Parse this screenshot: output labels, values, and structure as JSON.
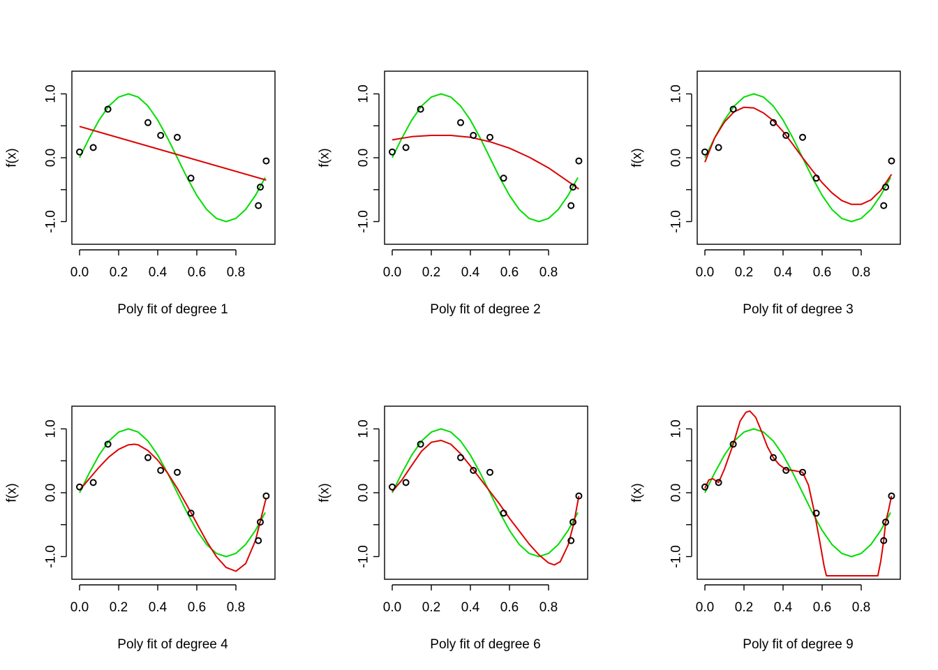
{
  "colors": {
    "truth": "#00dd00",
    "fit": "#dd0000",
    "points": "#000000",
    "background": "#ffffff"
  },
  "chart_data": [
    {
      "type": "line",
      "xlabel": "Poly fit of degree 1",
      "ylabel": "f(x)",
      "xlim": [
        0,
        0.95
      ],
      "ylim": [
        -1.3,
        1.3
      ],
      "xticks": [
        "0.0",
        "0.2",
        "0.4",
        "0.6",
        "0.8"
      ],
      "yticks": [
        "-1.0",
        "0.0",
        "1.0"
      ],
      "points": {
        "x": [
          0.0,
          0.07,
          0.145,
          0.35,
          0.415,
          0.5,
          0.57,
          0.915,
          0.925,
          0.955
        ],
        "y": [
          0.09,
          0.16,
          0.76,
          0.55,
          0.35,
          0.32,
          -0.32,
          -0.75,
          -0.46,
          -0.05
        ]
      },
      "true_curve": {
        "x": [
          0.0,
          0.05,
          0.1,
          0.15,
          0.2,
          0.25,
          0.3,
          0.35,
          0.4,
          0.45,
          0.5,
          0.55,
          0.6,
          0.65,
          0.7,
          0.75,
          0.8,
          0.85,
          0.9,
          0.95
        ],
        "y": [
          0.0,
          0.31,
          0.59,
          0.81,
          0.95,
          1.0,
          0.95,
          0.81,
          0.59,
          0.31,
          0.0,
          -0.31,
          -0.59,
          -0.81,
          -0.95,
          -1.0,
          -0.95,
          -0.81,
          -0.59,
          -0.31
        ]
      },
      "fit_curve": {
        "x": [
          0.0,
          0.955
        ],
        "y": [
          0.49,
          -0.35
        ]
      }
    },
    {
      "type": "line",
      "xlabel": "Poly fit of degree 2",
      "ylabel": "f(x)",
      "xlim": [
        0,
        0.95
      ],
      "ylim": [
        -1.3,
        1.3
      ],
      "xticks": [
        "0.0",
        "0.2",
        "0.4",
        "0.6",
        "0.8"
      ],
      "yticks": [
        "-1.0",
        "0.0",
        "1.0"
      ],
      "points": {
        "x": [
          0.0,
          0.07,
          0.145,
          0.35,
          0.415,
          0.5,
          0.57,
          0.915,
          0.925,
          0.955
        ],
        "y": [
          0.09,
          0.16,
          0.76,
          0.55,
          0.35,
          0.32,
          -0.32,
          -0.75,
          -0.46,
          -0.05
        ]
      },
      "true_curve": {
        "x": [
          0.0,
          0.05,
          0.1,
          0.15,
          0.2,
          0.25,
          0.3,
          0.35,
          0.4,
          0.45,
          0.5,
          0.55,
          0.6,
          0.65,
          0.7,
          0.75,
          0.8,
          0.85,
          0.9,
          0.95
        ],
        "y": [
          0.0,
          0.31,
          0.59,
          0.81,
          0.95,
          1.0,
          0.95,
          0.81,
          0.59,
          0.31,
          0.0,
          -0.31,
          -0.59,
          -0.81,
          -0.95,
          -1.0,
          -0.95,
          -0.81,
          -0.59,
          -0.31
        ]
      },
      "fit_curve": {
        "x": [
          0.0,
          0.1,
          0.2,
          0.3,
          0.4,
          0.5,
          0.6,
          0.7,
          0.8,
          0.9,
          0.955
        ],
        "y": [
          0.28,
          0.33,
          0.35,
          0.35,
          0.32,
          0.25,
          0.15,
          0.01,
          -0.16,
          -0.37,
          -0.49
        ]
      }
    },
    {
      "type": "line",
      "xlabel": "Poly fit of degree 3",
      "ylabel": "f(x)",
      "xlim": [
        0,
        0.95
      ],
      "ylim": [
        -1.3,
        1.3
      ],
      "xticks": [
        "0.0",
        "0.2",
        "0.4",
        "0.6",
        "0.8"
      ],
      "yticks": [
        "-1.0",
        "0.0",
        "1.0"
      ],
      "points": {
        "x": [
          0.0,
          0.07,
          0.145,
          0.35,
          0.415,
          0.5,
          0.57,
          0.915,
          0.925,
          0.955
        ],
        "y": [
          0.09,
          0.16,
          0.76,
          0.55,
          0.35,
          0.32,
          -0.32,
          -0.75,
          -0.46,
          -0.05
        ]
      },
      "true_curve": {
        "x": [
          0.0,
          0.05,
          0.1,
          0.15,
          0.2,
          0.25,
          0.3,
          0.35,
          0.4,
          0.45,
          0.5,
          0.55,
          0.6,
          0.65,
          0.7,
          0.75,
          0.8,
          0.85,
          0.9,
          0.95
        ],
        "y": [
          0.0,
          0.31,
          0.59,
          0.81,
          0.95,
          1.0,
          0.95,
          0.81,
          0.59,
          0.31,
          0.0,
          -0.31,
          -0.59,
          -0.81,
          -0.95,
          -1.0,
          -0.95,
          -0.81,
          -0.59,
          -0.31
        ]
      },
      "fit_curve": {
        "x": [
          0.0,
          0.05,
          0.1,
          0.15,
          0.2,
          0.25,
          0.3,
          0.35,
          0.4,
          0.45,
          0.5,
          0.55,
          0.6,
          0.65,
          0.7,
          0.75,
          0.8,
          0.85,
          0.9,
          0.955
        ],
        "y": [
          -0.07,
          0.31,
          0.56,
          0.72,
          0.79,
          0.78,
          0.7,
          0.58,
          0.41,
          0.21,
          0.0,
          -0.2,
          -0.39,
          -0.55,
          -0.67,
          -0.73,
          -0.73,
          -0.66,
          -0.51,
          -0.26
        ]
      }
    },
    {
      "type": "line",
      "xlabel": "Poly fit of degree 4",
      "ylabel": "f(x)",
      "xlim": [
        0,
        0.95
      ],
      "ylim": [
        -1.3,
        1.3
      ],
      "xticks": [
        "0.0",
        "0.2",
        "0.4",
        "0.6",
        "0.8"
      ],
      "yticks": [
        "-1.0",
        "0.0",
        "1.0"
      ],
      "points": {
        "x": [
          0.0,
          0.07,
          0.145,
          0.35,
          0.415,
          0.5,
          0.57,
          0.915,
          0.925,
          0.955
        ],
        "y": [
          0.09,
          0.16,
          0.76,
          0.55,
          0.35,
          0.32,
          -0.32,
          -0.75,
          -0.46,
          -0.05
        ]
      },
      "true_curve": {
        "x": [
          0.0,
          0.05,
          0.1,
          0.15,
          0.2,
          0.25,
          0.3,
          0.35,
          0.4,
          0.45,
          0.5,
          0.55,
          0.6,
          0.65,
          0.7,
          0.75,
          0.8,
          0.85,
          0.9,
          0.95
        ],
        "y": [
          0.0,
          0.31,
          0.59,
          0.81,
          0.95,
          1.0,
          0.95,
          0.81,
          0.59,
          0.31,
          0.0,
          -0.31,
          -0.59,
          -0.81,
          -0.95,
          -1.0,
          -0.95,
          -0.81,
          -0.59,
          -0.31
        ]
      },
      "fit_curve": {
        "x": [
          0.0,
          0.05,
          0.1,
          0.15,
          0.2,
          0.25,
          0.28,
          0.3,
          0.35,
          0.4,
          0.45,
          0.5,
          0.55,
          0.6,
          0.65,
          0.7,
          0.75,
          0.8,
          0.85,
          0.9,
          0.955
        ],
        "y": [
          0.04,
          0.22,
          0.4,
          0.56,
          0.68,
          0.75,
          0.76,
          0.75,
          0.66,
          0.51,
          0.31,
          0.07,
          -0.2,
          -0.48,
          -0.76,
          -1.0,
          -1.17,
          -1.23,
          -1.11,
          -0.75,
          -0.08
        ]
      }
    },
    {
      "type": "line",
      "xlabel": "Poly fit of degree 6",
      "ylabel": "f(x)",
      "xlim": [
        0,
        0.95
      ],
      "ylim": [
        -1.3,
        1.3
      ],
      "xticks": [
        "0.0",
        "0.2",
        "0.4",
        "0.6",
        "0.8"
      ],
      "yticks": [
        "-1.0",
        "0.0",
        "1.0"
      ],
      "points": {
        "x": [
          0.0,
          0.07,
          0.145,
          0.35,
          0.415,
          0.5,
          0.57,
          0.915,
          0.925,
          0.955
        ],
        "y": [
          0.09,
          0.16,
          0.76,
          0.55,
          0.35,
          0.32,
          -0.32,
          -0.75,
          -0.46,
          -0.05
        ]
      },
      "true_curve": {
        "x": [
          0.0,
          0.05,
          0.1,
          0.15,
          0.2,
          0.25,
          0.3,
          0.35,
          0.4,
          0.45,
          0.5,
          0.55,
          0.6,
          0.65,
          0.7,
          0.75,
          0.8,
          0.85,
          0.9,
          0.95
        ],
        "y": [
          0.0,
          0.31,
          0.59,
          0.81,
          0.95,
          1.0,
          0.95,
          0.81,
          0.59,
          0.31,
          0.0,
          -0.31,
          -0.59,
          -0.81,
          -0.95,
          -1.0,
          -0.95,
          -0.81,
          -0.59,
          -0.31
        ]
      },
      "fit_curve": {
        "x": [
          0.0,
          0.05,
          0.1,
          0.15,
          0.2,
          0.25,
          0.3,
          0.35,
          0.4,
          0.45,
          0.5,
          0.55,
          0.6,
          0.65,
          0.7,
          0.75,
          0.8,
          0.83,
          0.86,
          0.9,
          0.93,
          0.955
        ],
        "y": [
          0.02,
          0.2,
          0.43,
          0.65,
          0.79,
          0.82,
          0.76,
          0.61,
          0.42,
          0.22,
          0.02,
          -0.18,
          -0.4,
          -0.6,
          -0.8,
          -0.97,
          -1.1,
          -1.13,
          -1.08,
          -0.82,
          -0.47,
          -0.05
        ]
      }
    },
    {
      "type": "line",
      "xlabel": "Poly fit of degree 9",
      "ylabel": "f(x)",
      "xlim": [
        0,
        0.95
      ],
      "ylim": [
        -1.3,
        1.3
      ],
      "xticks": [
        "0.0",
        "0.2",
        "0.4",
        "0.6",
        "0.8"
      ],
      "yticks": [
        "-1.0",
        "0.0",
        "1.0"
      ],
      "points": {
        "x": [
          0.0,
          0.07,
          0.145,
          0.35,
          0.415,
          0.5,
          0.57,
          0.915,
          0.925,
          0.955
        ],
        "y": [
          0.09,
          0.16,
          0.76,
          0.55,
          0.35,
          0.32,
          -0.32,
          -0.75,
          -0.46,
          -0.05
        ]
      },
      "true_curve": {
        "x": [
          0.0,
          0.05,
          0.1,
          0.15,
          0.2,
          0.25,
          0.3,
          0.35,
          0.4,
          0.45,
          0.5,
          0.55,
          0.6,
          0.65,
          0.7,
          0.75,
          0.8,
          0.85,
          0.9,
          0.95
        ],
        "y": [
          0.0,
          0.31,
          0.59,
          0.81,
          0.95,
          1.0,
          0.95,
          0.81,
          0.59,
          0.31,
          0.0,
          -0.31,
          -0.59,
          -0.81,
          -0.95,
          -1.0,
          -0.95,
          -0.81,
          -0.59,
          -0.31
        ]
      },
      "fit_curve": {
        "x": [
          0.0,
          0.02,
          0.04,
          0.07,
          0.1,
          0.145,
          0.18,
          0.21,
          0.23,
          0.26,
          0.29,
          0.32,
          0.35,
          0.38,
          0.415,
          0.45,
          0.5,
          0.53,
          0.56,
          0.59,
          0.61,
          0.622,
          0.885,
          0.9,
          0.915,
          0.925,
          0.94,
          0.955
        ],
        "y": [
          0.07,
          0.2,
          0.22,
          0.16,
          0.37,
          0.76,
          1.12,
          1.26,
          1.28,
          1.18,
          0.96,
          0.72,
          0.55,
          0.44,
          0.36,
          0.35,
          0.32,
          0.12,
          -0.3,
          -0.8,
          -1.15,
          -1.3,
          -1.3,
          -1.07,
          -0.75,
          -0.46,
          -0.27,
          -0.05
        ]
      }
    }
  ]
}
